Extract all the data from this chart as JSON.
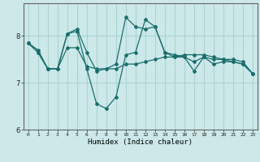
{
  "title": "",
  "xlabel": "Humidex (Indice chaleur)",
  "background_color": "#cce8e8",
  "grid_color": "#aad4d4",
  "line_color": "#1a6e6e",
  "xlim": [
    -0.5,
    23.5
  ],
  "ylim": [
    6.0,
    8.7
  ],
  "yticks": [
    6,
    7,
    8
  ],
  "xticks": [
    0,
    1,
    2,
    3,
    4,
    5,
    6,
    7,
    8,
    9,
    10,
    11,
    12,
    13,
    14,
    15,
    16,
    17,
    18,
    19,
    20,
    21,
    22,
    23
  ],
  "series": [
    [
      7.85,
      7.7,
      7.3,
      7.3,
      8.05,
      8.15,
      7.65,
      7.25,
      7.3,
      7.4,
      8.4,
      8.2,
      8.15,
      8.2,
      7.65,
      7.55,
      7.55,
      7.25,
      7.55,
      7.4,
      7.45,
      7.45,
      7.4,
      7.2
    ],
    [
      7.85,
      7.65,
      7.3,
      7.3,
      7.75,
      7.75,
      7.35,
      7.3,
      7.3,
      7.3,
      7.4,
      7.4,
      7.45,
      7.5,
      7.55,
      7.55,
      7.6,
      7.6,
      7.6,
      7.55,
      7.5,
      7.45,
      7.4,
      7.2
    ],
    [
      7.85,
      7.65,
      7.3,
      7.3,
      8.05,
      8.1,
      7.3,
      6.55,
      6.45,
      6.7,
      7.6,
      7.65,
      8.35,
      8.2,
      7.65,
      7.6,
      7.55,
      7.45,
      7.55,
      7.5,
      7.5,
      7.5,
      7.45,
      7.2
    ]
  ]
}
